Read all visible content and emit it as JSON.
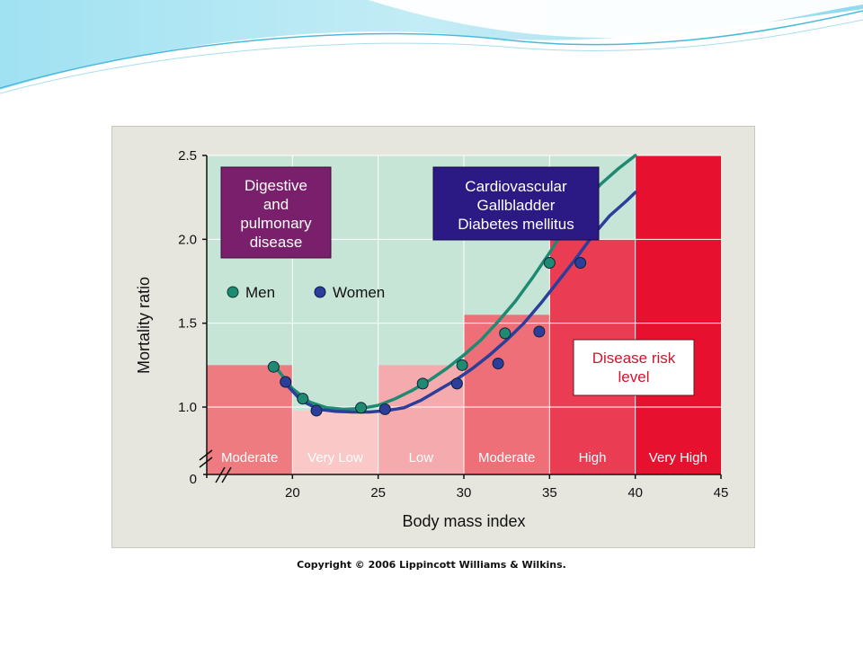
{
  "chart_data": {
    "type": "scatter",
    "title": "",
    "xlabel": "Body mass index",
    "ylabel": "Mortality ratio",
    "xlim": [
      15,
      45
    ],
    "ylim": [
      0,
      2.5
    ],
    "x_ticks": [
      "20",
      "25",
      "30",
      "35",
      "40",
      "45"
    ],
    "y_ticks": [
      "0",
      "1.0",
      "1.5",
      "2.0",
      "2.5"
    ],
    "axis_break": true,
    "grid": true,
    "legend": {
      "position": "upper-left",
      "entries": [
        "Men",
        "Women"
      ]
    },
    "series": [
      {
        "name": "Men",
        "color": "#1f8a72",
        "points": [
          [
            18.9,
            1.24
          ],
          [
            20.6,
            1.05
          ],
          [
            24.0,
            0.99
          ],
          [
            27.6,
            1.14
          ],
          [
            29.9,
            1.25
          ],
          [
            32.4,
            1.44
          ],
          [
            35.0,
            1.86
          ]
        ],
        "curve": [
          [
            19.0,
            1.24
          ],
          [
            20.0,
            1.11
          ],
          [
            21.0,
            1.03
          ],
          [
            22.0,
            0.99
          ],
          [
            23.0,
            0.97
          ],
          [
            24.0,
            0.98
          ],
          [
            25.0,
            1.01
          ],
          [
            26.0,
            1.05
          ],
          [
            27.0,
            1.1
          ],
          [
            28.0,
            1.16
          ],
          [
            29.0,
            1.23
          ],
          [
            30.0,
            1.31
          ],
          [
            31.0,
            1.4
          ],
          [
            32.0,
            1.51
          ],
          [
            33.0,
            1.63
          ],
          [
            34.0,
            1.77
          ],
          [
            35.0,
            1.92
          ],
          [
            36.0,
            2.08
          ],
          [
            37.0,
            2.22
          ],
          [
            38.0,
            2.33
          ],
          [
            39.0,
            2.42
          ],
          [
            40.0,
            2.5
          ]
        ]
      },
      {
        "name": "Women",
        "color": "#2a3e9a",
        "points": [
          [
            19.6,
            1.15
          ],
          [
            21.4,
            0.95
          ],
          [
            25.4,
            0.97
          ],
          [
            29.6,
            1.14
          ],
          [
            32.0,
            1.26
          ],
          [
            34.4,
            1.45
          ],
          [
            36.8,
            1.86
          ]
        ],
        "curve": [
          [
            19.5,
            1.15
          ],
          [
            20.5,
            1.04
          ],
          [
            21.5,
            0.97
          ],
          [
            22.5,
            0.94
          ],
          [
            23.5,
            0.93
          ],
          [
            24.5,
            0.93
          ],
          [
            25.5,
            0.95
          ],
          [
            26.5,
            0.99
          ],
          [
            27.5,
            1.04
          ],
          [
            28.5,
            1.1
          ],
          [
            29.5,
            1.16
          ],
          [
            30.5,
            1.23
          ],
          [
            31.5,
            1.31
          ],
          [
            32.5,
            1.4
          ],
          [
            33.5,
            1.5
          ],
          [
            34.5,
            1.62
          ],
          [
            35.5,
            1.75
          ],
          [
            36.5,
            1.88
          ],
          [
            37.5,
            2.02
          ],
          [
            38.5,
            2.14
          ],
          [
            39.5,
            2.23
          ],
          [
            40.0,
            2.28
          ]
        ]
      }
    ],
    "risk_bands": [
      {
        "label": "Moderate",
        "x0": 15,
        "x1": 20,
        "level": 1.25,
        "color": "#ee7b7f"
      },
      {
        "label": "Very Low",
        "x0": 20,
        "x1": 25,
        "level": 0.95,
        "color": "#f9c8c7"
      },
      {
        "label": "Low",
        "x0": 25,
        "x1": 30,
        "level": 1.25,
        "color": "#f5aaad"
      },
      {
        "label": "Moderate",
        "x0": 30,
        "x1": 35,
        "level": 1.55,
        "color": "#ee6f78"
      },
      {
        "label": "High",
        "x0": 35,
        "x1": 40,
        "level": 2.0,
        "color": "#ea3d53"
      },
      {
        "label": "Very High",
        "x0": 40,
        "x1": 45,
        "level": 2.5,
        "color": "#e8102f"
      }
    ],
    "annotations": [
      {
        "lines": [
          "Digestive",
          "and",
          "pulmonary",
          "disease"
        ],
        "color": "#7a1f6b"
      },
      {
        "lines": [
          "Cardiovascular",
          "Gallbladder",
          "Diabetes mellitus"
        ],
        "color": "#2b1984"
      },
      {
        "lines": [
          "Disease risk",
          "level"
        ],
        "color": "#ffffff"
      }
    ]
  },
  "copyright": "Copyright © 2006 Lippincott Williams & Wilkins.",
  "colors": {
    "background_fill": "#c7e5d7",
    "frame": "#e7e6de",
    "grid": "#ffffff",
    "slide_wave_light": "#c9ecf4",
    "slide_wave_mid": "#6fcde6"
  }
}
